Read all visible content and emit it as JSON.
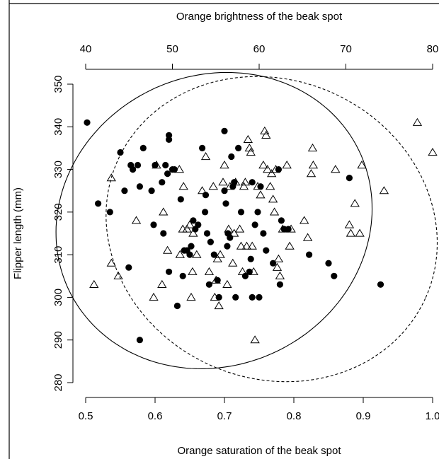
{
  "chart_data": {
    "type": "scatter",
    "title": "",
    "xlabel": "Orange saturation of the beak spot",
    "x2label": "Orange brightness of the beak spot",
    "ylabel": "Flipper length (mm)",
    "xlim": [
      0.5,
      1.0
    ],
    "x2lim": [
      40,
      80
    ],
    "ylim": [
      280,
      350
    ],
    "xticks": [
      "0.5",
      "0.6",
      "0.7",
      "0.8",
      "0.9",
      "1.0"
    ],
    "x2ticks": [
      "40",
      "50",
      "60",
      "70",
      "80"
    ],
    "yticks": [
      "280",
      "290",
      "300",
      "310",
      "320",
      "330",
      "340",
      "350"
    ],
    "grid": false,
    "series": [
      {
        "marker": "filled-circle",
        "points": [
          [
            0.502,
            341
          ],
          [
            0.518,
            322
          ],
          [
            0.535,
            320
          ],
          [
            0.55,
            334
          ],
          [
            0.556,
            325
          ],
          [
            0.562,
            307
          ],
          [
            0.565,
            331
          ],
          [
            0.568,
            330
          ],
          [
            0.575,
            331
          ],
          [
            0.578,
            290
          ],
          [
            0.578,
            326
          ],
          [
            0.583,
            335
          ],
          [
            0.595,
            325
          ],
          [
            0.598,
            317
          ],
          [
            0.6,
            331
          ],
          [
            0.61,
            327
          ],
          [
            0.612,
            315
          ],
          [
            0.615,
            331
          ],
          [
            0.618,
            329
          ],
          [
            0.62,
            338
          ],
          [
            0.62,
            337
          ],
          [
            0.62,
            306
          ],
          [
            0.625,
            330
          ],
          [
            0.628,
            330
          ],
          [
            0.632,
            298
          ],
          [
            0.637,
            323
          ],
          [
            0.64,
            305
          ],
          [
            0.642,
            311
          ],
          [
            0.646,
            311
          ],
          [
            0.65,
            310
          ],
          [
            0.652,
            312
          ],
          [
            0.655,
            318
          ],
          [
            0.658,
            316
          ],
          [
            0.662,
            317
          ],
          [
            0.668,
            335
          ],
          [
            0.672,
            320
          ],
          [
            0.673,
            324
          ],
          [
            0.675,
            315
          ],
          [
            0.678,
            303
          ],
          [
            0.68,
            313
          ],
          [
            0.685,
            310
          ],
          [
            0.69,
            304
          ],
          [
            0.692,
            300
          ],
          [
            0.7,
            339
          ],
          [
            0.7,
            325
          ],
          [
            0.702,
            322
          ],
          [
            0.704,
            312
          ],
          [
            0.705,
            315
          ],
          [
            0.708,
            314
          ],
          [
            0.71,
            333
          ],
          [
            0.712,
            326
          ],
          [
            0.714,
            327
          ],
          [
            0.716,
            300
          ],
          [
            0.72,
            335
          ],
          [
            0.724,
            320
          ],
          [
            0.73,
            305
          ],
          [
            0.736,
            306
          ],
          [
            0.738,
            309
          ],
          [
            0.74,
            327
          ],
          [
            0.74,
            300
          ],
          [
            0.744,
            317
          ],
          [
            0.748,
            320
          ],
          [
            0.75,
            300
          ],
          [
            0.752,
            326
          ],
          [
            0.756,
            315
          ],
          [
            0.76,
            311
          ],
          [
            0.77,
            308
          ],
          [
            0.778,
            330
          ],
          [
            0.78,
            303
          ],
          [
            0.782,
            318
          ],
          [
            0.786,
            316
          ],
          [
            0.792,
            316
          ],
          [
            0.822,
            310
          ],
          [
            0.85,
            308
          ],
          [
            0.858,
            305
          ],
          [
            0.88,
            328
          ],
          [
            0.925,
            303
          ]
        ]
      },
      {
        "marker": "open-triangle",
        "points": [
          [
            0.512,
            303
          ],
          [
            0.537,
            328
          ],
          [
            0.537,
            308
          ],
          [
            0.547,
            305
          ],
          [
            0.573,
            318
          ],
          [
            0.598,
            300
          ],
          [
            0.602,
            331
          ],
          [
            0.61,
            303
          ],
          [
            0.612,
            320
          ],
          [
            0.618,
            311
          ],
          [
            0.635,
            330
          ],
          [
            0.636,
            310
          ],
          [
            0.64,
            316
          ],
          [
            0.641,
            326
          ],
          [
            0.646,
            316
          ],
          [
            0.65,
            317
          ],
          [
            0.652,
            300
          ],
          [
            0.654,
            306
          ],
          [
            0.655,
            315
          ],
          [
            0.66,
            310
          ],
          [
            0.668,
            325
          ],
          [
            0.673,
            333
          ],
          [
            0.678,
            306
          ],
          [
            0.684,
            326
          ],
          [
            0.686,
            300
          ],
          [
            0.688,
            304
          ],
          [
            0.69,
            309
          ],
          [
            0.692,
            298
          ],
          [
            0.694,
            310
          ],
          [
            0.698,
            327
          ],
          [
            0.7,
            331
          ],
          [
            0.704,
            303
          ],
          [
            0.706,
            316
          ],
          [
            0.708,
            326
          ],
          [
            0.712,
            308
          ],
          [
            0.714,
            315
          ],
          [
            0.716,
            327
          ],
          [
            0.722,
            316
          ],
          [
            0.724,
            312
          ],
          [
            0.726,
            306
          ],
          [
            0.728,
            326
          ],
          [
            0.73,
            327
          ],
          [
            0.732,
            312
          ],
          [
            0.734,
            337
          ],
          [
            0.736,
            335
          ],
          [
            0.738,
            334
          ],
          [
            0.74,
            312
          ],
          [
            0.742,
            306
          ],
          [
            0.744,
            290
          ],
          [
            0.748,
            326
          ],
          [
            0.752,
            324
          ],
          [
            0.756,
            331
          ],
          [
            0.758,
            339
          ],
          [
            0.76,
            338
          ],
          [
            0.762,
            330
          ],
          [
            0.766,
            326
          ],
          [
            0.768,
            329
          ],
          [
            0.77,
            323
          ],
          [
            0.772,
            320
          ],
          [
            0.774,
            330
          ],
          [
            0.776,
            307
          ],
          [
            0.778,
            309
          ],
          [
            0.78,
            305
          ],
          [
            0.784,
            316
          ],
          [
            0.79,
            331
          ],
          [
            0.794,
            312
          ],
          [
            0.796,
            316
          ],
          [
            0.815,
            318
          ],
          [
            0.82,
            314
          ],
          [
            0.825,
            329
          ],
          [
            0.827,
            335
          ],
          [
            0.828,
            331
          ],
          [
            0.86,
            330
          ],
          [
            0.88,
            317
          ],
          [
            0.882,
            315
          ],
          [
            0.888,
            322
          ],
          [
            0.895,
            315
          ],
          [
            0.898,
            331
          ],
          [
            0.93,
            325
          ],
          [
            0.978,
            341
          ],
          [
            1.0,
            334
          ]
        ]
      }
    ],
    "ellipses": [
      {
        "style": "solid",
        "cx": 0.685,
        "cy": 318,
        "rx": 0.232,
        "ry": 34,
        "angle_deg": 26
      },
      {
        "style": "dashed",
        "cx": 0.768,
        "cy": 316,
        "rx": 0.243,
        "ry": 35,
        "angle_deg": -24
      }
    ]
  }
}
